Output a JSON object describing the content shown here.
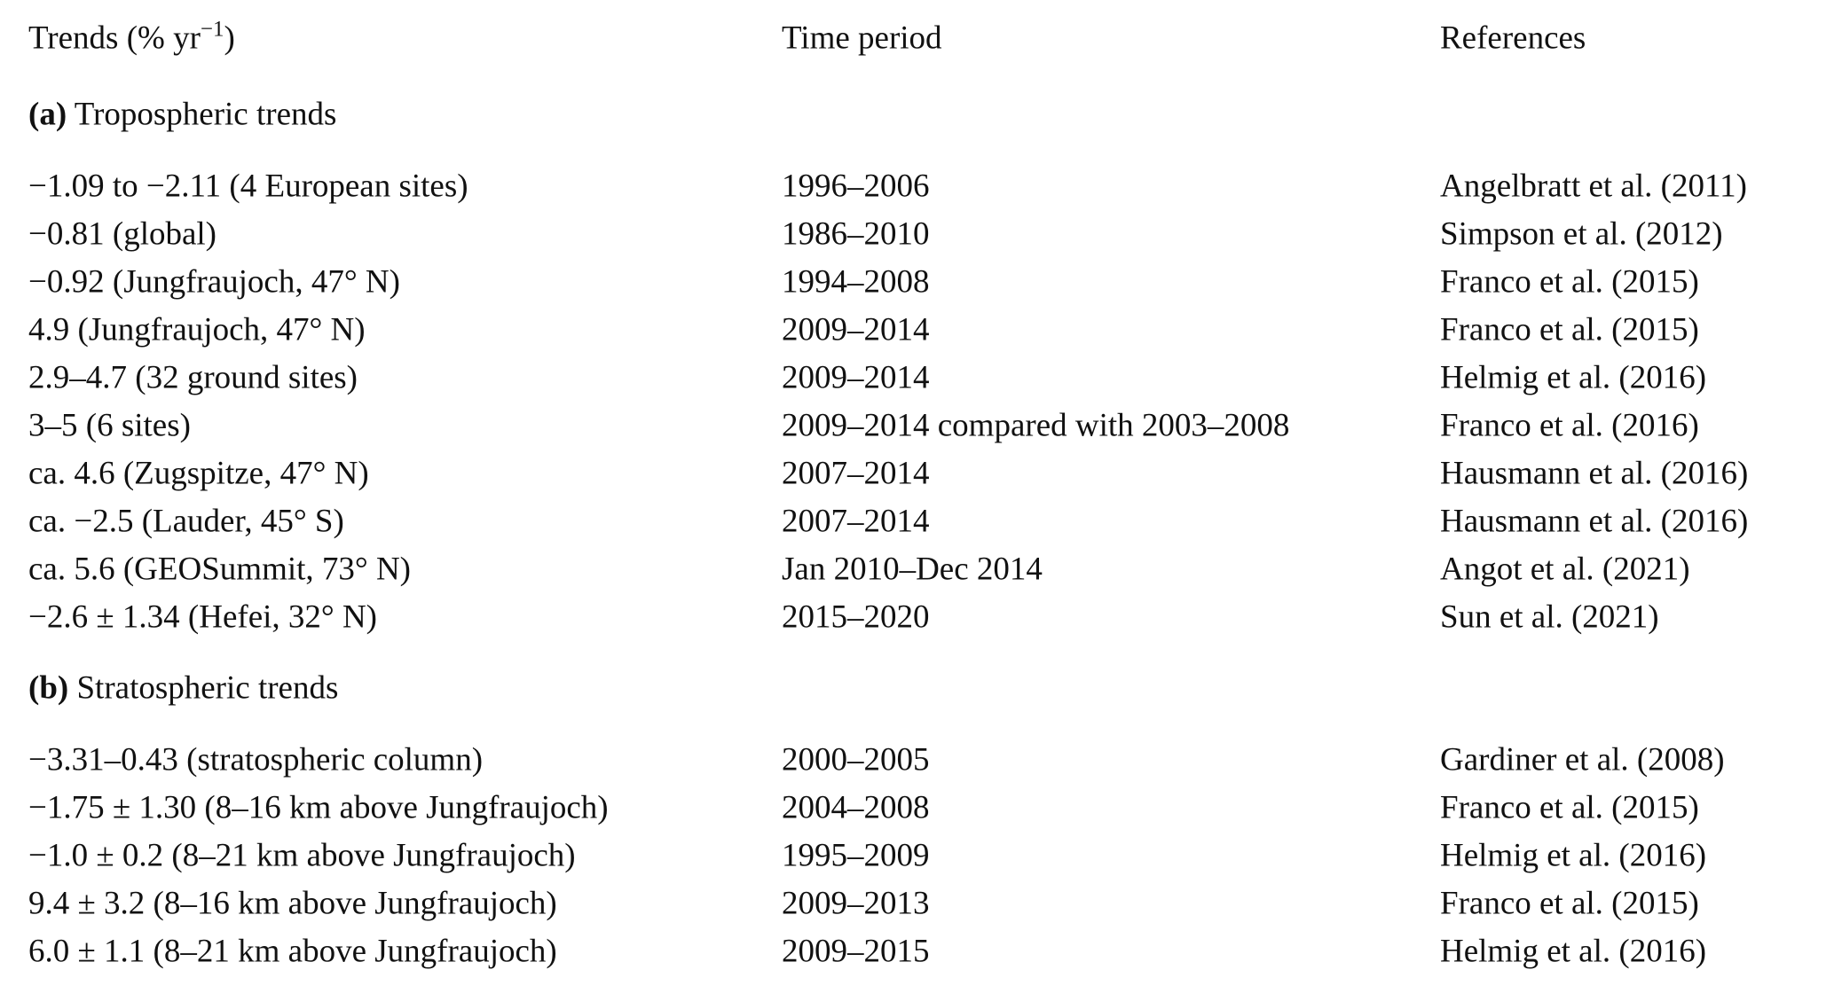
{
  "table": {
    "header": [
      {
        "text": "Trends (% yr",
        "sup": "−1",
        "tail": ")"
      },
      {
        "text": "Time period"
      },
      {
        "text": "References"
      }
    ],
    "sections": [
      {
        "tag": "(a)",
        "title": "Tropospheric trends",
        "rows": [
          [
            "−1.09 to −2.11 (4 European sites)",
            "1996–2006",
            "Angelbratt et al. (2011)"
          ],
          [
            "−0.81 (global)",
            "1986–2010",
            "Simpson et al. (2012)"
          ],
          [
            "−0.92 (Jungfraujoch, 47° N)",
            "1994–2008",
            "Franco et al. (2015)"
          ],
          [
            "4.9 (Jungfraujoch, 47° N)",
            "2009–2014",
            "Franco et al. (2015)"
          ],
          [
            "2.9–4.7 (32 ground sites)",
            "2009–2014",
            "Helmig et al. (2016)"
          ],
          [
            "3–5 (6 sites)",
            "2009–2014 compared with 2003–2008",
            "Franco et al. (2016)"
          ],
          [
            "ca. 4.6 (Zugspitze, 47° N)",
            "2007–2014",
            "Hausmann et al. (2016)"
          ],
          [
            "ca. −2.5 (Lauder, 45° S)",
            "2007–2014",
            "Hausmann et al. (2016)"
          ],
          [
            "ca. 5.6 (GEOSummit, 73° N)",
            "Jan 2010–Dec 2014",
            "Angot et al. (2021)"
          ],
          [
            "−2.6 ± 1.34 (Hefei, 32° N)",
            "2015–2020",
            "Sun et al. (2021)"
          ]
        ]
      },
      {
        "tag": "(b)",
        "title": "Stratospheric trends",
        "rows": [
          [
            "−3.31–0.43 (stratospheric column)",
            "2000–2005",
            "Gardiner et al. (2008)"
          ],
          [
            "−1.75 ± 1.30 (8–16 km above Jungfraujoch)",
            "2004–2008",
            "Franco et al. (2015)"
          ],
          [
            "−1.0 ± 0.2 (8–21 km above Jungfraujoch)",
            "1995–2009",
            "Helmig et al. (2016)"
          ],
          [
            "9.4 ± 3.2 (8–16 km above Jungfraujoch)",
            "2009–2013",
            "Franco et al. (2015)"
          ],
          [
            "6.0 ± 1.1 (8–21 km above Jungfraujoch)",
            "2009–2015",
            "Helmig et al. (2016)"
          ]
        ]
      }
    ]
  }
}
